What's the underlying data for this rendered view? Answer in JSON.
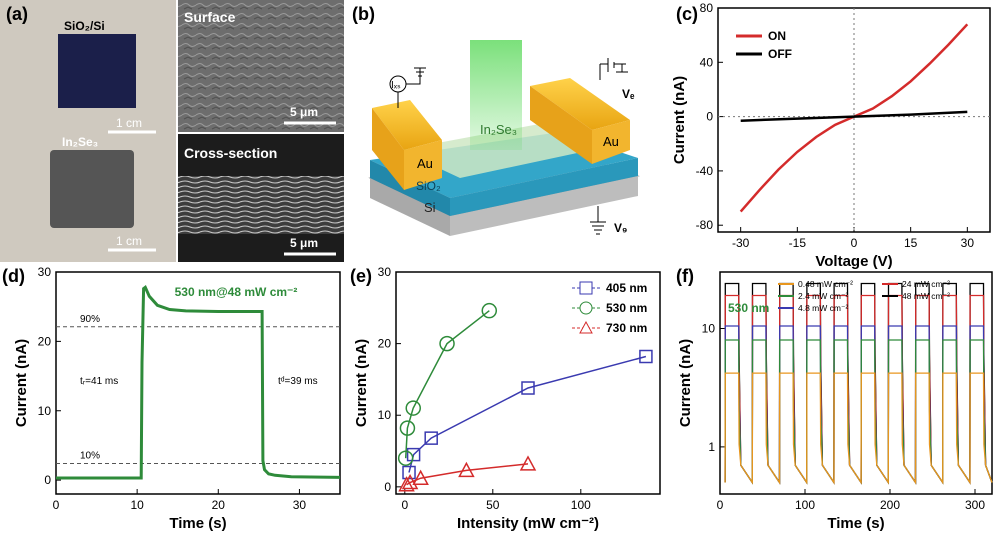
{
  "panels": {
    "a": {
      "label": "(a)",
      "photo_top_label": "SiO₂/Si",
      "photo_top_scale": "1 cm",
      "photo_bottom_label": "In₂Se₃",
      "photo_bottom_scale": "1 cm",
      "sem_top_title": "Surface",
      "sem_top_scale": "5 μm",
      "sem_bottom_title": "Cross-section",
      "sem_bottom_scale": "5 μm"
    },
    "b": {
      "label": "(b)",
      "au_left": "Au",
      "au_right": "Au",
      "channel": "In₂Se₃",
      "oxide": "SiO₂",
      "substrate": "Si",
      "ids": "Iₓₛ",
      "vd": "Vₑ",
      "vg": "V₉"
    },
    "c": {
      "label": "(c)"
    },
    "d": {
      "label": "(d)"
    },
    "e": {
      "label": "(e)"
    },
    "f": {
      "label": "(f)"
    }
  },
  "chart_data": [
    {
      "panel": "c",
      "type": "line",
      "xlabel": "Voltage (V)",
      "ylabel": "Current (nA)",
      "xlim": [
        -36,
        36
      ],
      "ylim": [
        -85,
        80
      ],
      "xticks": [
        -30,
        -15,
        0,
        15,
        30
      ],
      "yticks": [
        -80,
        -40,
        0,
        40,
        80
      ],
      "legend_position": "top-left",
      "series": [
        {
          "name": "ON",
          "color": "#d42b2b",
          "x": [
            -30,
            -25,
            -20,
            -15,
            -10,
            -5,
            0,
            5,
            10,
            15,
            20,
            25,
            30
          ],
          "y": [
            -70,
            -54,
            -39,
            -26,
            -15,
            -6,
            0,
            6,
            15,
            26,
            39,
            53,
            68
          ]
        },
        {
          "name": "OFF",
          "color": "#000000",
          "x": [
            -30,
            -15,
            0,
            15,
            30
          ],
          "y": [
            -3,
            -1.5,
            0,
            1.5,
            3.5
          ]
        }
      ]
    },
    {
      "panel": "d",
      "type": "line",
      "xlabel": "Time (s)",
      "ylabel": "Current (nA)",
      "xlim": [
        0,
        35
      ],
      "ylim": [
        -2,
        30
      ],
      "xticks": [
        0,
        10,
        20,
        30
      ],
      "yticks": [
        0,
        10,
        20,
        30
      ],
      "color": "#2e8b3a",
      "annotation": "530 nm@48 mW cm⁻²",
      "level_90_label": "90%",
      "level_10_label": "10%",
      "level_90": 22.1,
      "level_10": 2.4,
      "rise_label": "tᵣ=41 ms",
      "decay_label": "tᵈ=39 ms",
      "x": [
        0,
        10.5,
        10.6,
        10.8,
        11.0,
        11.5,
        12.5,
        14,
        16,
        20,
        25.4,
        25.5,
        25.7,
        26.2,
        27,
        29,
        35
      ],
      "y": [
        0.3,
        0.3,
        17,
        27.6,
        27.8,
        26.5,
        25.2,
        24.6,
        24.4,
        24.3,
        24.3,
        2.8,
        1.5,
        0.9,
        0.7,
        0.5,
        0.4
      ]
    },
    {
      "panel": "e",
      "type": "scatter",
      "xlabel": "Intensity (mW cm⁻²)",
      "ylabel": "Current (nA)",
      "xlim": [
        -5,
        145
      ],
      "ylim": [
        -1,
        30
      ],
      "xticks": [
        0,
        50,
        100
      ],
      "yticks": [
        0,
        10,
        20,
        30
      ],
      "legend_position": "top-right",
      "series": [
        {
          "name": "405 nm",
          "marker": "square",
          "color": "#3a3ab0",
          "x": [
            2.4,
            5,
            15,
            70,
            137
          ],
          "y": [
            2.0,
            4.5,
            6.8,
            13.8,
            18.2
          ]
        },
        {
          "name": "530 nm",
          "marker": "circle",
          "color": "#2e8b3a",
          "x": [
            0.5,
            1.5,
            4.8,
            24,
            48
          ],
          "y": [
            4.0,
            8.2,
            11.0,
            20.0,
            24.6
          ]
        },
        {
          "name": "730 nm",
          "marker": "triangle",
          "color": "#d42b2b",
          "x": [
            1,
            3,
            9,
            35,
            70
          ],
          "y": [
            0.3,
            0.6,
            1.2,
            2.3,
            3.2
          ]
        }
      ]
    },
    {
      "panel": "f",
      "type": "line",
      "xlabel": "Time (s)",
      "ylabel": "Current (nA)",
      "scale_y": "log",
      "xlim": [
        0,
        320
      ],
      "ylim": [
        0.4,
        30
      ],
      "xticks": [
        0,
        100,
        200,
        300
      ],
      "yticks": [
        1,
        10
      ],
      "annotation": "530 nm",
      "period_s": 32,
      "on_fraction": 0.5,
      "off_level": 0.5,
      "series": [
        {
          "name": "0.48 mW cm⁻²",
          "color": "#e8961e",
          "on_level": 4.2
        },
        {
          "name": "24 mW cm⁻²",
          "color": "#d42b2b",
          "on_level": 19
        },
        {
          "name": "2.4 mW cm⁻²",
          "color": "#2e8b3a",
          "on_level": 8
        },
        {
          "name": "48 mW cm⁻²",
          "color": "#000000",
          "on_level": 24
        },
        {
          "name": "4.8 mW cm⁻²",
          "color": "#3a3ab0",
          "on_level": 10.5
        }
      ]
    }
  ]
}
